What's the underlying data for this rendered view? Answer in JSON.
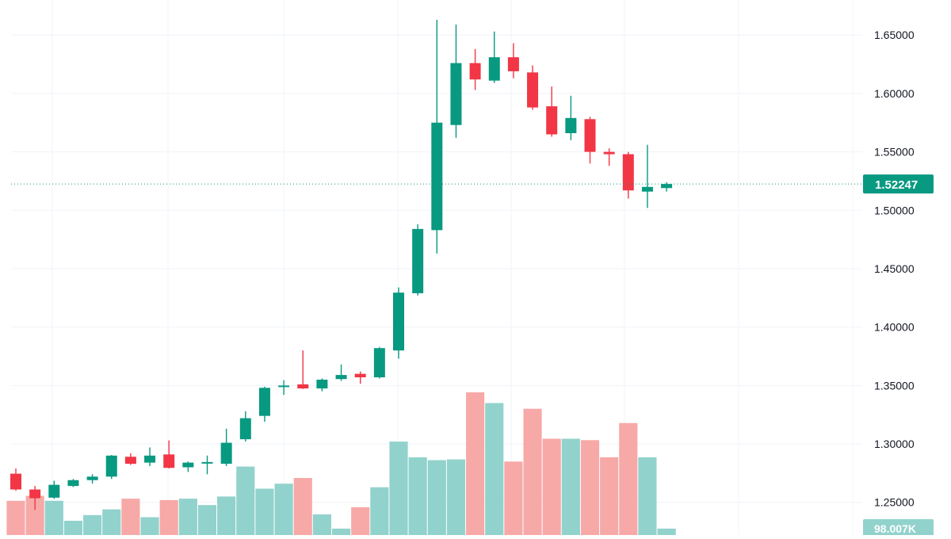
{
  "colors": {
    "up": "#089981",
    "down": "#f23645",
    "up_volume": "#92d2cc",
    "down_volume": "#f7a9a7",
    "grid": "#f0f3fa",
    "axis_text": "#131722",
    "price_line": "#089981",
    "label_text": "#ffffff"
  },
  "chart_data": {
    "type": "candlestick",
    "y_axis": {
      "ticks": [
        "1.65000",
        "1.60000",
        "1.55000",
        "1.50000",
        "1.45000",
        "1.40000",
        "1.35000",
        "1.30000",
        "1.25000"
      ],
      "tick_values": [
        1.65,
        1.6,
        1.55,
        1.5,
        1.45,
        1.4,
        1.35,
        1.3,
        1.25
      ],
      "range": [
        1.222,
        1.68
      ]
    },
    "grid": true,
    "last_price": {
      "value": 1.52247,
      "label": "1.52247"
    },
    "volume_label": "98.007K",
    "candles": [
      {
        "o": 1.2745,
        "h": 1.279,
        "l": 1.26,
        "c": 1.261
      },
      {
        "o": 1.261,
        "h": 1.264,
        "l": 1.2435,
        "c": 1.2535
      },
      {
        "o": 1.254,
        "h": 1.2685,
        "l": 1.253,
        "c": 1.265
      },
      {
        "o": 1.264,
        "h": 1.27,
        "l": 1.263,
        "c": 1.269
      },
      {
        "o": 1.269,
        "h": 1.274,
        "l": 1.266,
        "c": 1.272
      },
      {
        "o": 1.272,
        "h": 1.2905,
        "l": 1.27,
        "c": 1.29
      },
      {
        "o": 1.289,
        "h": 1.292,
        "l": 1.282,
        "c": 1.283
      },
      {
        "o": 1.284,
        "h": 1.297,
        "l": 1.281,
        "c": 1.29
      },
      {
        "o": 1.291,
        "h": 1.303,
        "l": 1.279,
        "c": 1.2795
      },
      {
        "o": 1.28,
        "h": 1.285,
        "l": 1.276,
        "c": 1.284
      },
      {
        "o": 1.284,
        "h": 1.29,
        "l": 1.274,
        "c": 1.2845
      },
      {
        "o": 1.283,
        "h": 1.313,
        "l": 1.281,
        "c": 1.301
      },
      {
        "o": 1.304,
        "h": 1.328,
        "l": 1.302,
        "c": 1.322
      },
      {
        "o": 1.324,
        "h": 1.349,
        "l": 1.319,
        "c": 1.348
      },
      {
        "o": 1.3495,
        "h": 1.3545,
        "l": 1.342,
        "c": 1.35
      },
      {
        "o": 1.351,
        "h": 1.38,
        "l": 1.347,
        "c": 1.3475
      },
      {
        "o": 1.3475,
        "h": 1.356,
        "l": 1.345,
        "c": 1.355
      },
      {
        "o": 1.3555,
        "h": 1.368,
        "l": 1.354,
        "c": 1.359
      },
      {
        "o": 1.36,
        "h": 1.362,
        "l": 1.3515,
        "c": 1.357
      },
      {
        "o": 1.357,
        "h": 1.383,
        "l": 1.356,
        "c": 1.382
      },
      {
        "o": 1.38,
        "h": 1.434,
        "l": 1.373,
        "c": 1.4295
      },
      {
        "o": 1.429,
        "h": 1.488,
        "l": 1.427,
        "c": 1.484
      },
      {
        "o": 1.483,
        "h": 1.663,
        "l": 1.463,
        "c": 1.575
      },
      {
        "o": 1.573,
        "h": 1.659,
        "l": 1.562,
        "c": 1.626
      },
      {
        "o": 1.626,
        "h": 1.638,
        "l": 1.603,
        "c": 1.612
      },
      {
        "o": 1.611,
        "h": 1.653,
        "l": 1.609,
        "c": 1.631
      },
      {
        "o": 1.631,
        "h": 1.643,
        "l": 1.613,
        "c": 1.619
      },
      {
        "o": 1.618,
        "h": 1.624,
        "l": 1.586,
        "c": 1.588
      },
      {
        "o": 1.589,
        "h": 1.606,
        "l": 1.563,
        "c": 1.565
      },
      {
        "o": 1.566,
        "h": 1.598,
        "l": 1.56,
        "c": 1.579
      },
      {
        "o": 1.578,
        "h": 1.58,
        "l": 1.54,
        "c": 1.55
      },
      {
        "o": 1.55,
        "h": 1.553,
        "l": 1.538,
        "c": 1.548
      },
      {
        "o": 1.548,
        "h": 1.55,
        "l": 1.51,
        "c": 1.517
      },
      {
        "o": 1.516,
        "h": 1.556,
        "l": 1.502,
        "c": 1.52
      },
      {
        "o": 1.519,
        "h": 1.524,
        "l": 1.516,
        "c": 1.5225
      }
    ],
    "volume_series": {
      "relative_heights": [
        0.24,
        0.275,
        0.24,
        0.1,
        0.14,
        0.18,
        0.255,
        0.125,
        0.245,
        0.255,
        0.21,
        0.27,
        0.48,
        0.325,
        0.36,
        0.4,
        0.145,
        0.045,
        0.195,
        0.335,
        0.655,
        0.545,
        0.525,
        0.53,
        1.0,
        0.925,
        0.515,
        0.885,
        0.675,
        0.675,
        0.665,
        0.545,
        0.785,
        0.545,
        0.045
      ]
    }
  }
}
